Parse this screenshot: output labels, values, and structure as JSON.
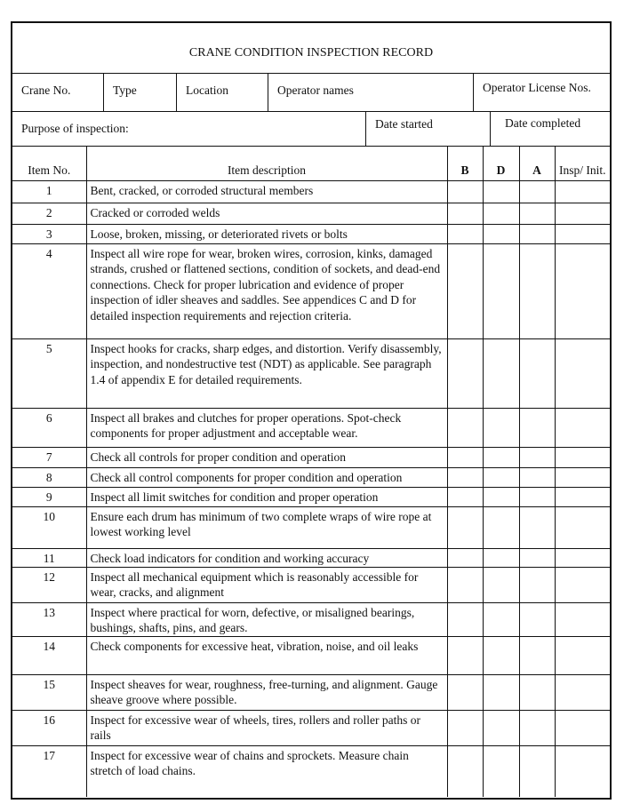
{
  "title": "CRANE CONDITION INSPECTION RECORD",
  "info_row1": [
    "Crane No.",
    "Type",
    "Location",
    "Operator names",
    "Operator License Nos."
  ],
  "info_row2": [
    "Purpose of inspection:",
    "Date started",
    "Date completed"
  ],
  "columns": {
    "item_no": "Item No.",
    "description": "Item description",
    "b": "B",
    "d": "D",
    "a": "A",
    "insp": "Insp/ Init."
  },
  "items": [
    {
      "no": "1",
      "text": "Bent, cracked, or corroded structural members"
    },
    {
      "no": "2",
      "text": "Cracked or corroded welds"
    },
    {
      "no": "3",
      "text": "Loose, broken, missing, or deteriorated rivets or bolts"
    },
    {
      "no": "4",
      "text": "Inspect all wire rope for wear, broken wires, corrosion, kinks, damaged strands, crushed or flattened sections, condition of sockets, and dead-end connections. Check for proper lubrication and evidence of proper inspection of idler sheaves and saddles. See appendices C and D for detailed inspection requirements and rejection criteria."
    },
    {
      "no": "5",
      "text": "Inspect hooks for cracks, sharp edges, and distortion. Verify disassembly, inspection, and nondestructive test (NDT) as applicable. See paragraph 1.4 of appendix E for detailed requirements."
    },
    {
      "no": "6",
      "text": "Inspect all brakes and clutches for proper operations. Spot-check components for proper adjustment and acceptable wear."
    },
    {
      "no": "7",
      "text": "Check all controls for proper condition and operation"
    },
    {
      "no": "8",
      "text": "Check all control components for proper condition and operation"
    },
    {
      "no": "9",
      "text": "Inspect all limit switches for condition and proper operation"
    },
    {
      "no": "10",
      "text": "Ensure each drum has minimum of two complete wraps of wire rope at lowest working level"
    },
    {
      "no": "11",
      "text": "Check load indicators for condition and working accuracy"
    },
    {
      "no": "12",
      "text": "Inspect all mechanical equipment which is reasonably accessible for wear, cracks, and alignment"
    },
    {
      "no": "13",
      "text": "Inspect where practical for worn, defective, or misaligned bearings, bushings, shafts, pins, and gears."
    },
    {
      "no": "14",
      "text": "Check components for excessive heat, vibration, noise, and oil leaks"
    },
    {
      "no": "15",
      "text": "Inspect sheaves for wear, roughness, free-turning, and alignment. Gauge sheave groove where possible."
    },
    {
      "no": "16",
      "text": "Inspect for excessive wear of wheels, tires, rollers and roller paths or rails"
    },
    {
      "no": "17",
      "text": "Inspect for excessive wear of chains and sprockets. Measure chain stretch of load chains."
    }
  ]
}
